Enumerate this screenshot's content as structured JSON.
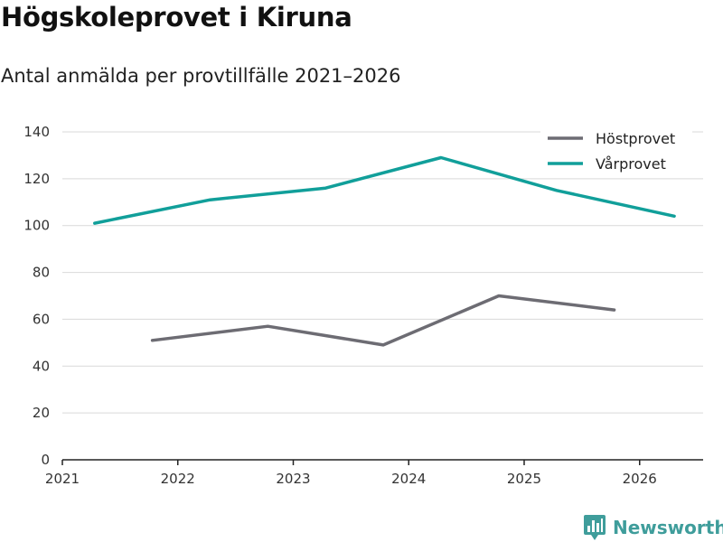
{
  "chart_data": {
    "type": "line",
    "title": "Högskoleprovet i Kiruna",
    "subtitle": "Antal anmälda per provtillfälle 2021–2026",
    "xlabel": "",
    "ylabel": "",
    "xlim": [
      2021,
      2026.55
    ],
    "ylim": [
      0,
      140
    ],
    "x_ticks": [
      "2021",
      "2022",
      "2023",
      "2024",
      "2025",
      "2026"
    ],
    "y_ticks": [
      "0",
      "20",
      "40",
      "60",
      "80",
      "100",
      "120",
      "140"
    ],
    "grid": "horizontal",
    "legend_position": "top-right",
    "series": [
      {
        "name": "Höstprovet",
        "color": "#6d6c73",
        "points": [
          [
            2021.78,
            51
          ],
          [
            2022.78,
            57
          ],
          [
            2023.78,
            49
          ],
          [
            2024.78,
            70
          ],
          [
            2025.78,
            64
          ]
        ]
      },
      {
        "name": "Vårprovet",
        "color": "#119f9a",
        "points": [
          [
            2021.28,
            101
          ],
          [
            2022.28,
            111
          ],
          [
            2023.28,
            116
          ],
          [
            2024.28,
            129
          ],
          [
            2025.28,
            115
          ],
          [
            2026.3,
            104
          ]
        ]
      }
    ]
  },
  "brand": {
    "name": "Newsworthy",
    "color": "#3f9d9b"
  }
}
